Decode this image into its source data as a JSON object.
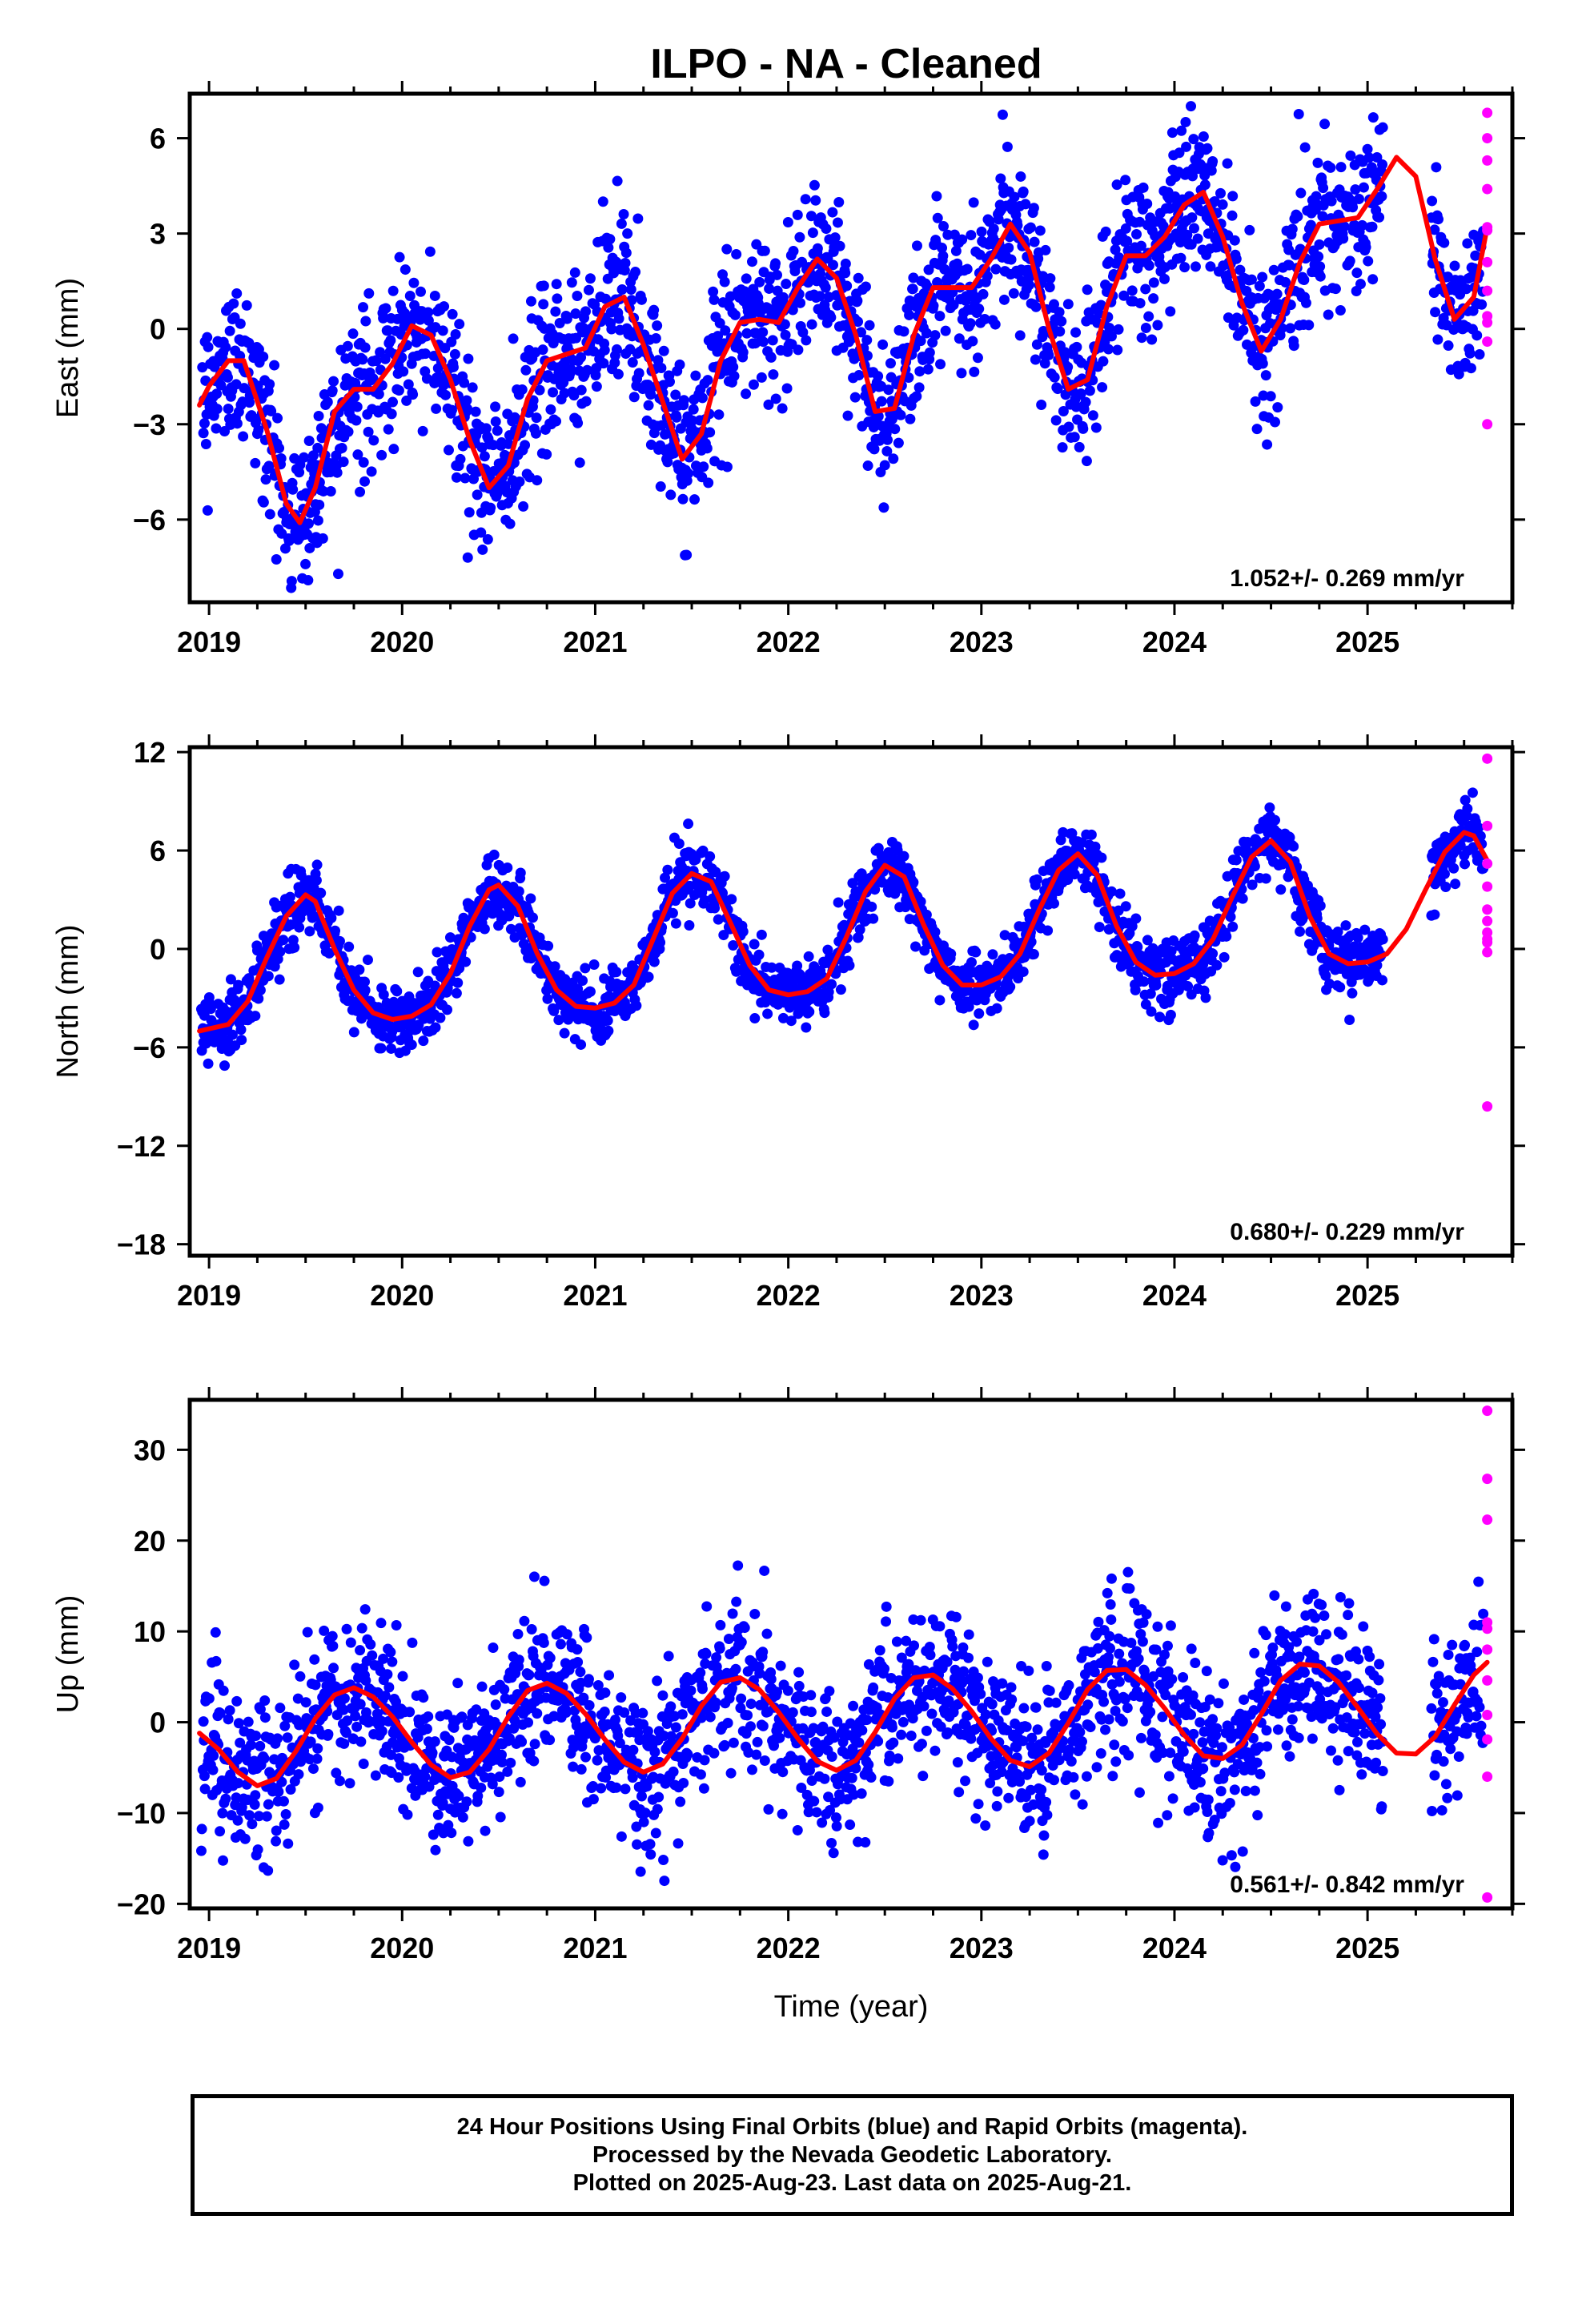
{
  "title": "ILPO  - NA - Cleaned",
  "colors": {
    "final": "#0000ff",
    "rapid": "#ff00ff",
    "model": "#ff0000",
    "axis": "#000000"
  },
  "chart_data": [
    {
      "type": "scatter",
      "name": "east",
      "ylabel": "East (mm)",
      "xlim": [
        2018.9,
        2025.75
      ],
      "ylim": [
        -8.6,
        7.4
      ],
      "yticks": [
        6,
        3,
        0,
        -3,
        -6
      ],
      "ytick_labels": [
        "6",
        "3",
        "0",
        "−3",
        "−6"
      ],
      "xticks": [
        2019,
        2020,
        2021,
        2022,
        2023,
        2024,
        2025
      ],
      "xtick_labels": [
        "2019",
        "2020",
        "2021",
        "2022",
        "2023",
        "2024",
        "2025"
      ],
      "rate": "1.052+/- 0.269 mm/yr",
      "series": [
        {
          "name": "model",
          "x": [
            2018.95,
            2019.0,
            2019.1,
            2019.18,
            2019.3,
            2019.4,
            2019.47,
            2019.55,
            2019.65,
            2019.75,
            2019.85,
            2019.95,
            2020.05,
            2020.15,
            2020.25,
            2020.35,
            2020.45,
            2020.55,
            2020.65,
            2020.75,
            2020.85,
            2020.95,
            2021.05,
            2021.15,
            2021.25,
            2021.35,
            2021.45,
            2021.55,
            2021.65,
            2021.75,
            2021.85,
            2021.95,
            2022.05,
            2022.15,
            2022.25,
            2022.35,
            2022.45,
            2022.55,
            2022.65,
            2022.75,
            2022.85,
            2022.95,
            2023.05,
            2023.15,
            2023.25,
            2023.35,
            2023.45,
            2023.55,
            2023.65,
            2023.75,
            2023.85,
            2023.95,
            2024.05,
            2024.15,
            2024.25,
            2024.35,
            2024.45,
            2024.55,
            2024.65,
            2024.75,
            2024.85,
            2024.95,
            2025.05,
            2025.15,
            2025.25,
            2025.35,
            2025.45,
            2025.55,
            2025.62
          ],
          "y": [
            -2.4,
            -1.8,
            -1.0,
            -1.0,
            -3.2,
            -5.5,
            -6.1,
            -5.0,
            -2.6,
            -1.9,
            -1.9,
            -1.1,
            0.1,
            -0.2,
            -1.6,
            -3.5,
            -5.0,
            -4.3,
            -2.2,
            -1.0,
            -0.8,
            -0.6,
            0.7,
            1.0,
            -0.5,
            -2.3,
            -4.1,
            -3.3,
            -1.0,
            0.2,
            0.3,
            0.2,
            1.3,
            2.2,
            1.6,
            -0.2,
            -2.6,
            -2.5,
            -0.2,
            1.3,
            1.3,
            1.3,
            2.2,
            3.3,
            2.4,
            0.0,
            -1.9,
            -1.6,
            0.7,
            2.3,
            2.3,
            2.9,
            3.9,
            4.3,
            2.9,
            0.8,
            -0.7,
            0.3,
            2.1,
            3.3,
            3.4,
            3.5,
            4.4,
            5.4,
            4.8,
            2.2,
            0.3,
            1.0,
            3.2
          ]
        },
        {
          "name": "final",
          "points": "generated-scatter"
        },
        {
          "name": "rapid",
          "x": [
            2025.62,
            2025.62,
            2025.62,
            2025.62,
            2025.62,
            2025.62,
            2025.62,
            2025.62,
            2025.62,
            2025.62,
            2025.62,
            2025.62
          ],
          "y": [
            6.8,
            6.0,
            5.3,
            4.4,
            3.2,
            3.1,
            2.1,
            1.2,
            0.4,
            0.2,
            -0.4,
            -3.0
          ]
        }
      ]
    },
    {
      "type": "scatter",
      "name": "north",
      "ylabel": "North (mm)",
      "xlim": [
        2018.9,
        2025.75
      ],
      "ylim": [
        -18.7,
        12.3
      ],
      "yticks": [
        12,
        6,
        0,
        -6,
        -12,
        -18
      ],
      "ytick_labels": [
        "12",
        "6",
        "0",
        "−6",
        "−12",
        "−18"
      ],
      "xticks": [
        2019,
        2020,
        2021,
        2022,
        2023,
        2024,
        2025
      ],
      "xtick_labels": [
        "2019",
        "2020",
        "2021",
        "2022",
        "2023",
        "2024",
        "2025"
      ],
      "rate": "0.680+/- 0.229 mm/yr",
      "series": [
        {
          "name": "model",
          "x": [
            2018.95,
            2019.1,
            2019.2,
            2019.3,
            2019.4,
            2019.5,
            2019.55,
            2019.65,
            2019.75,
            2019.85,
            2019.95,
            2020.05,
            2020.15,
            2020.25,
            2020.35,
            2020.45,
            2020.5,
            2020.6,
            2020.7,
            2020.8,
            2020.9,
            2021.0,
            2021.1,
            2021.2,
            2021.3,
            2021.4,
            2021.5,
            2021.6,
            2021.7,
            2021.8,
            2021.9,
            2022.0,
            2022.1,
            2022.2,
            2022.3,
            2022.4,
            2022.5,
            2022.6,
            2022.7,
            2022.8,
            2022.9,
            2023.0,
            2023.1,
            2023.2,
            2023.3,
            2023.4,
            2023.5,
            2023.6,
            2023.7,
            2023.8,
            2023.9,
            2024.0,
            2024.1,
            2024.2,
            2024.3,
            2024.4,
            2024.5,
            2024.6,
            2024.7,
            2024.8,
            2024.9,
            2025.0,
            2025.1,
            2025.2,
            2025.3,
            2025.4,
            2025.5,
            2025.55,
            2025.62
          ],
          "y": [
            -5.0,
            -4.6,
            -3.2,
            -0.5,
            2.0,
            3.3,
            2.9,
            0.0,
            -2.5,
            -3.9,
            -4.3,
            -4.1,
            -3.4,
            -1.5,
            1.4,
            3.6,
            3.9,
            2.6,
            -0.3,
            -2.5,
            -3.5,
            -3.6,
            -3.3,
            -2.2,
            0.6,
            3.4,
            4.6,
            4.1,
            1.6,
            -1.0,
            -2.5,
            -2.8,
            -2.6,
            -1.8,
            0.7,
            3.5,
            5.1,
            4.4,
            1.5,
            -1.0,
            -2.2,
            -2.2,
            -1.7,
            -0.3,
            2.4,
            4.8,
            5.8,
            4.5,
            1.4,
            -0.8,
            -1.6,
            -1.5,
            -0.9,
            0.6,
            3.2,
            5.6,
            6.6,
            5.3,
            2.0,
            -0.3,
            -0.9,
            -0.8,
            -0.3,
            1.2,
            3.6,
            5.9,
            7.1,
            6.9,
            5.4
          ]
        },
        {
          "name": "final",
          "points": "generated-scatter"
        },
        {
          "name": "rapid",
          "x": [
            2025.62,
            2025.62,
            2025.62,
            2025.62,
            2025.62,
            2025.62,
            2025.62,
            2025.62,
            2025.62,
            2025.62,
            2025.62
          ],
          "y": [
            11.6,
            7.5,
            5.2,
            3.8,
            2.4,
            1.7,
            1.0,
            0.6,
            0.4,
            -0.2,
            -9.6
          ]
        }
      ]
    },
    {
      "type": "scatter",
      "name": "up",
      "ylabel": "Up (mm)",
      "xlim": [
        2018.9,
        2025.75
      ],
      "ylim": [
        -20.5,
        35.5
      ],
      "yticks": [
        30,
        20,
        10,
        0,
        -10,
        -20
      ],
      "ytick_labels": [
        "30",
        "20",
        "10",
        "0",
        "−10",
        "−20"
      ],
      "xticks": [
        2019,
        2020,
        2021,
        2022,
        2023,
        2024,
        2025
      ],
      "xtick_labels": [
        "2019",
        "2020",
        "2021",
        "2022",
        "2023",
        "2024",
        "2025"
      ],
      "xlabel": "Time (year)",
      "rate": "0.561+/- 0.842 mm/yr",
      "series": [
        {
          "name": "model",
          "x": [
            2018.95,
            2019.05,
            2019.15,
            2019.25,
            2019.35,
            2019.45,
            2019.55,
            2019.65,
            2019.75,
            2019.85,
            2019.95,
            2020.05,
            2020.15,
            2020.25,
            2020.35,
            2020.45,
            2020.55,
            2020.65,
            2020.75,
            2020.85,
            2020.95,
            2021.05,
            2021.15,
            2021.25,
            2021.35,
            2021.45,
            2021.55,
            2021.65,
            2021.75,
            2021.85,
            2021.95,
            2022.05,
            2022.15,
            2022.25,
            2022.35,
            2022.45,
            2022.55,
            2022.65,
            2022.75,
            2022.85,
            2022.95,
            2023.05,
            2023.15,
            2023.25,
            2023.35,
            2023.45,
            2023.55,
            2023.65,
            2023.75,
            2023.85,
            2023.95,
            2024.05,
            2024.15,
            2024.25,
            2024.35,
            2024.45,
            2024.55,
            2024.65,
            2024.75,
            2024.85,
            2024.95,
            2025.05,
            2025.15,
            2025.25,
            2025.35,
            2025.45,
            2025.55,
            2025.62
          ],
          "y": [
            -1.2,
            -3.0,
            -5.5,
            -7.0,
            -6.2,
            -3.2,
            0.4,
            3.0,
            3.8,
            2.8,
            0.6,
            -2.2,
            -4.7,
            -6.1,
            -5.5,
            -3.0,
            0.6,
            3.5,
            4.3,
            3.2,
            0.9,
            -1.9,
            -4.4,
            -5.5,
            -4.6,
            -1.8,
            1.8,
            4.4,
            4.9,
            3.6,
            1.1,
            -1.8,
            -4.3,
            -5.3,
            -4.2,
            -1.1,
            2.6,
            4.9,
            5.2,
            3.7,
            1.2,
            -1.8,
            -4.2,
            -4.9,
            -3.4,
            -0.1,
            3.6,
            5.7,
            5.8,
            4.1,
            1.5,
            -1.4,
            -3.7,
            -4.0,
            -2.5,
            0.9,
            4.6,
            6.4,
            6.2,
            4.4,
            1.6,
            -1.3,
            -3.4,
            -3.5,
            -1.6,
            1.9,
            5.2,
            6.6
          ]
        },
        {
          "name": "final",
          "points": "generated-scatter"
        },
        {
          "name": "rapid",
          "x": [
            2025.62,
            2025.62,
            2025.62,
            2025.62,
            2025.62,
            2025.62,
            2025.62,
            2025.62,
            2025.62,
            2025.62,
            2025.62
          ],
          "y": [
            34.3,
            26.8,
            22.3,
            11.0,
            10.3,
            8.0,
            4.6,
            0.8,
            -1.9,
            -6.0,
            -19.3
          ]
        }
      ]
    }
  ],
  "footer": {
    "line1": "24 Hour Positions Using Final Orbits (blue) and Rapid Orbits (magenta).",
    "line2": "Processed by the Nevada Geodetic Laboratory.",
    "line3": "Plotted on 2025-Aug-23. Last data on 2025-Aug-21."
  }
}
